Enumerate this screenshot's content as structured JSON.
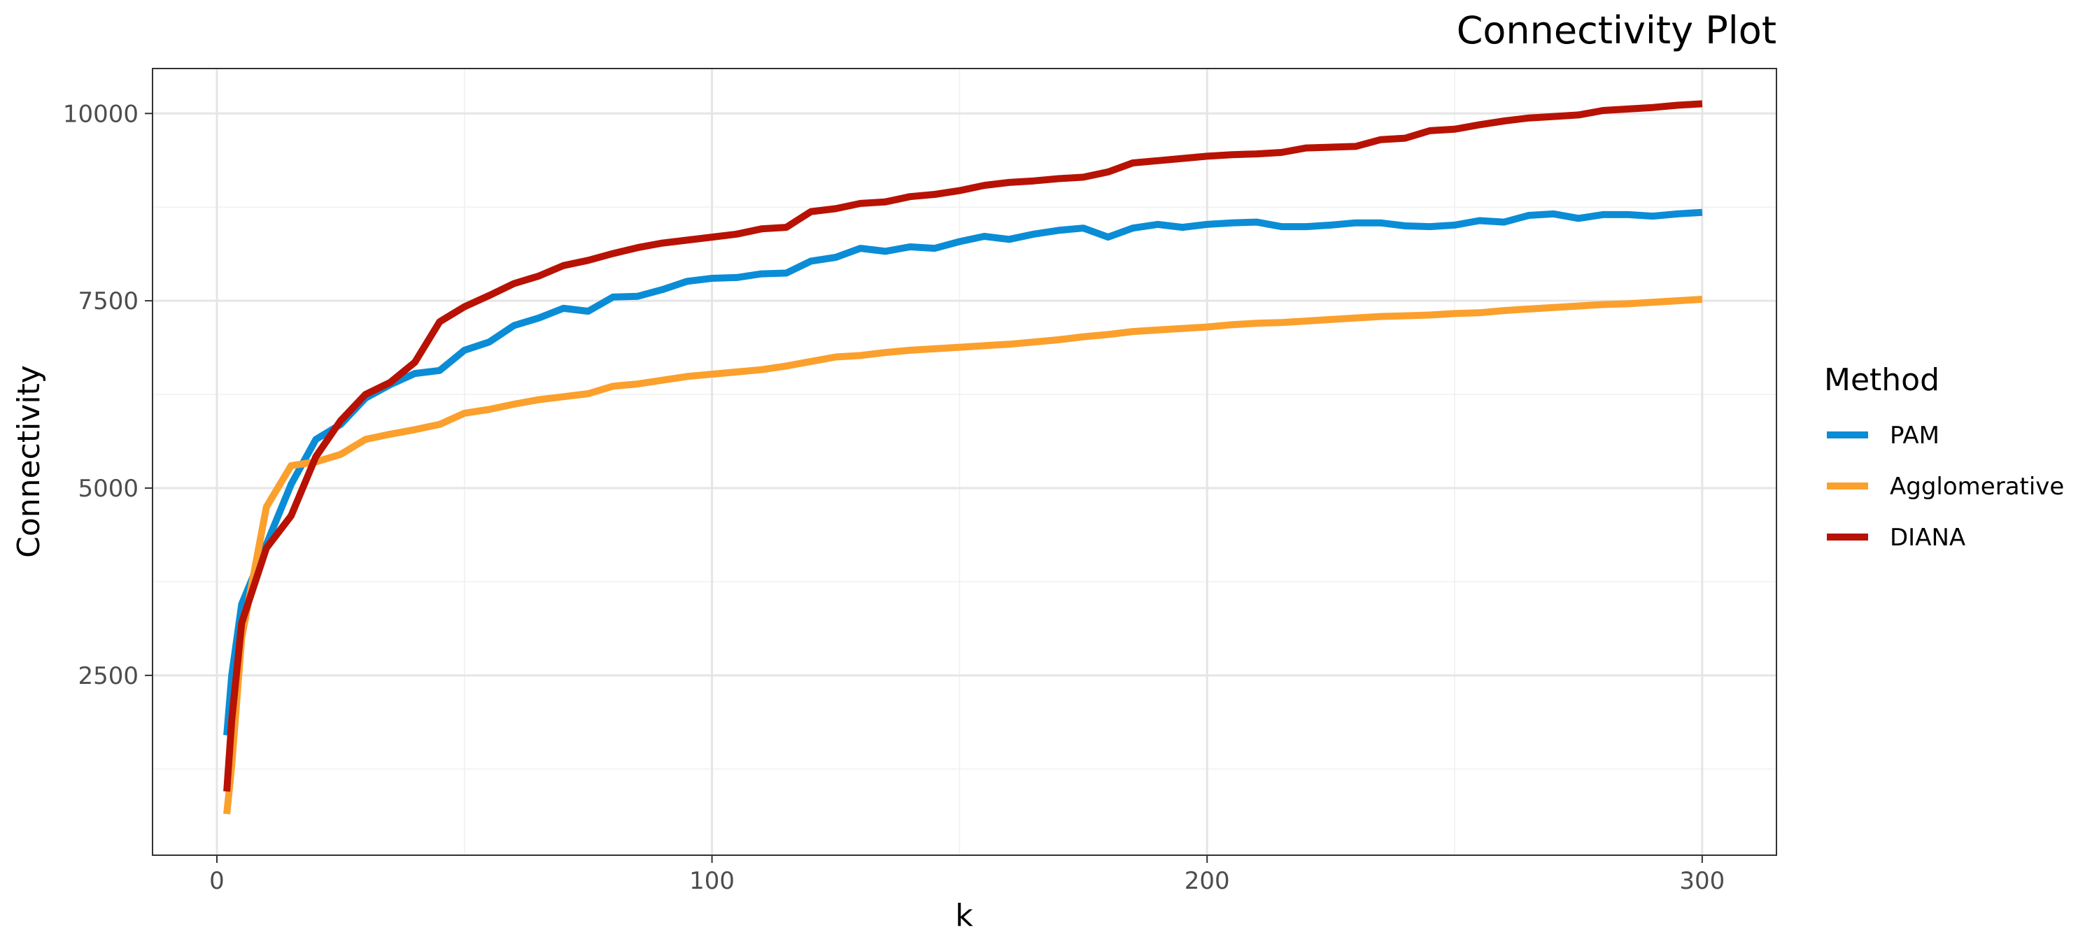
{
  "chart_data": {
    "type": "line",
    "title": "Connectivity Plot",
    "xlabel": "k",
    "ylabel": "Connectivity",
    "xlim": [
      -13,
      315
    ],
    "ylim": [
      100,
      10600
    ],
    "x_ticks": [
      0,
      100,
      200,
      300
    ],
    "y_ticks": [
      2500,
      5000,
      7500,
      10000
    ],
    "x_tick_labels": [
      "0",
      "100",
      "200",
      "300"
    ],
    "y_tick_labels": [
      "2500",
      "5000",
      "7500",
      "10000"
    ],
    "grid": true,
    "legend": {
      "title": "Method",
      "position": "right"
    },
    "x": [
      2,
      3,
      5,
      10,
      15,
      20,
      25,
      30,
      35,
      40,
      45,
      50,
      55,
      60,
      65,
      70,
      75,
      80,
      85,
      90,
      95,
      100,
      105,
      110,
      115,
      120,
      125,
      130,
      135,
      140,
      145,
      150,
      155,
      160,
      165,
      170,
      175,
      180,
      185,
      190,
      195,
      200,
      205,
      210,
      215,
      220,
      225,
      230,
      235,
      240,
      245,
      250,
      255,
      260,
      265,
      270,
      275,
      280,
      285,
      290,
      295,
      300
    ],
    "series": [
      {
        "name": "PAM",
        "color": "#0a8dd6",
        "values": [
          1700,
          2500,
          3450,
          4250,
          5050,
          5650,
          5850,
          6200,
          6380,
          6530,
          6570,
          6840,
          6950,
          7170,
          7270,
          7400,
          7360,
          7550,
          7560,
          7650,
          7760,
          7800,
          7810,
          7860,
          7870,
          8030,
          8080,
          8200,
          8160,
          8220,
          8200,
          8290,
          8360,
          8320,
          8390,
          8440,
          8470,
          8350,
          8470,
          8520,
          8480,
          8520,
          8540,
          8550,
          8490,
          8490,
          8510,
          8540,
          8540,
          8500,
          8490,
          8510,
          8570,
          8550,
          8640,
          8660,
          8600,
          8650,
          8650,
          8630,
          8660,
          8680
        ]
      },
      {
        "name": "Agglomerative",
        "color": "#fba02d",
        "values": [
          650,
          1300,
          3000,
          4750,
          5300,
          5350,
          5450,
          5650,
          5720,
          5780,
          5850,
          6000,
          6050,
          6120,
          6180,
          6220,
          6260,
          6360,
          6390,
          6440,
          6490,
          6520,
          6550,
          6580,
          6630,
          6690,
          6750,
          6770,
          6810,
          6840,
          6860,
          6880,
          6900,
          6920,
          6950,
          6980,
          7020,
          7050,
          7090,
          7110,
          7130,
          7150,
          7180,
          7200,
          7210,
          7230,
          7250,
          7270,
          7290,
          7300,
          7310,
          7330,
          7340,
          7370,
          7390,
          7410,
          7430,
          7450,
          7460,
          7480,
          7500,
          7520
        ]
      },
      {
        "name": "DIANA",
        "color": "#b81204",
        "values": [
          950,
          1900,
          3200,
          4200,
          4630,
          5420,
          5900,
          6250,
          6410,
          6680,
          7220,
          7420,
          7570,
          7730,
          7830,
          7970,
          8040,
          8130,
          8210,
          8270,
          8310,
          8350,
          8390,
          8460,
          8480,
          8690,
          8730,
          8800,
          8820,
          8890,
          8920,
          8970,
          9040,
          9080,
          9100,
          9130,
          9150,
          9220,
          9340,
          9370,
          9400,
          9430,
          9450,
          9460,
          9480,
          9540,
          9550,
          9560,
          9650,
          9670,
          9770,
          9790,
          9850,
          9900,
          9940,
          9960,
          9980,
          10040,
          10060,
          10080,
          10110,
          10130
        ]
      }
    ]
  }
}
